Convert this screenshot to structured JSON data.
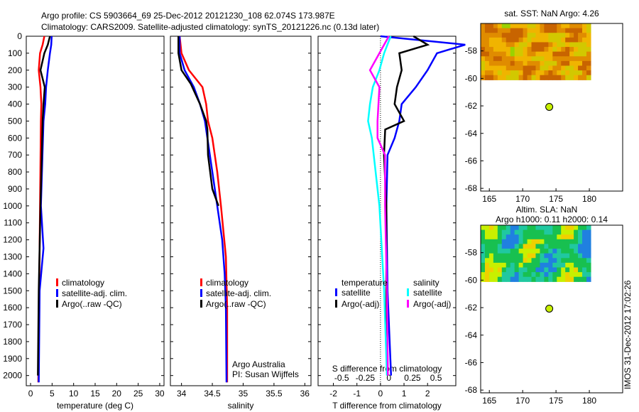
{
  "title_line1": "Argo profile: CS 5903664_69 25-Dec-2012 20121230_108 62.074S 173.987E",
  "title_line2": "Climatology: CARS2009. Satellite-adjusted climatology: synTS_20121226.nc (0.13d later)",
  "stamp": "IMOS 31-Dec-2012 17:02:26",
  "colors": {
    "clim": "#ff0000",
    "sat": "#0000ff",
    "argo": "#000000",
    "sal_sat": "#00ffff",
    "sal_argo": "#ff00ff"
  },
  "chart_data": [
    {
      "type": "line",
      "xlabel": "temperature (deg C)",
      "xlim": [
        -1,
        31
      ],
      "xticks": [
        0,
        5,
        10,
        15,
        20,
        25,
        30
      ],
      "ylim": [
        2060,
        0
      ],
      "yticks": [
        0,
        100,
        200,
        300,
        400,
        500,
        600,
        700,
        800,
        900,
        1000,
        1100,
        1200,
        1300,
        1400,
        1500,
        1600,
        1700,
        1800,
        1900,
        2000
      ],
      "legend": [
        "climatology",
        "satellite-adj. clim.",
        "Argo(..raw -QC)"
      ],
      "series": [
        {
          "name": "climatology",
          "color": "clim",
          "depth": [
            0,
            50,
            100,
            200,
            300,
            400,
            500,
            1000,
            1500,
            2040
          ],
          "values": [
            3.2,
            2.8,
            2.2,
            1.9,
            2.3,
            2.5,
            2.4,
            2.2,
            2.0,
            1.8
          ]
        },
        {
          "name": "satellite-adj. clim.",
          "color": "sat",
          "depth": [
            0,
            50,
            100,
            200,
            300,
            400,
            500,
            1000,
            1250,
            1500,
            2040
          ],
          "values": [
            4.9,
            4.8,
            4.5,
            4.0,
            3.6,
            3.4,
            3.0,
            2.4,
            3.0,
            2.1,
            1.9
          ]
        },
        {
          "name": "Argo(..raw -QC)",
          "color": "argo",
          "depth": [
            0,
            50,
            100,
            200,
            300,
            400,
            500,
            1000,
            1500,
            2000
          ],
          "values": [
            4.5,
            4.0,
            3.2,
            2.3,
            3.3,
            3.0,
            2.8,
            2.3,
            1.9,
            1.7
          ]
        }
      ]
    },
    {
      "type": "line",
      "xlabel": "salinity",
      "xlim": [
        33.82,
        36.1
      ],
      "xticks": [
        34,
        34.5,
        35,
        35.5,
        36
      ],
      "ylim": [
        2060,
        0
      ],
      "legend": [
        "climatology",
        "satellite-adj. clim.",
        "Argo(..raw -QC)"
      ],
      "annotation": [
        "Argo Australia",
        "PI: Susan Wijffels"
      ],
      "series": [
        {
          "name": "climatology",
          "color": "clim",
          "depth": [
            0,
            100,
            200,
            300,
            400,
            500,
            600,
            800,
            1000,
            1300,
            1600,
            2040
          ],
          "values": [
            33.97,
            34.0,
            34.12,
            34.34,
            34.4,
            34.43,
            34.5,
            34.58,
            34.64,
            34.72,
            34.74,
            34.74
          ]
        },
        {
          "name": "satellite-adj. clim.",
          "color": "sat",
          "depth": [
            0,
            100,
            200,
            300,
            400,
            500,
            600,
            800,
            1000,
            1200,
            1400,
            1600,
            2040
          ],
          "values": [
            33.97,
            33.97,
            34.05,
            34.2,
            34.3,
            34.38,
            34.42,
            34.5,
            34.58,
            34.66,
            34.7,
            34.72,
            34.73
          ]
        },
        {
          "name": "Argo(..raw -QC)",
          "color": "argo",
          "depth": [
            0,
            100,
            200,
            280,
            400,
            500,
            550,
            700,
            900,
            1000
          ],
          "values": [
            33.95,
            33.95,
            34.0,
            34.15,
            34.3,
            34.4,
            34.42,
            34.43,
            34.5,
            34.6
          ]
        }
      ]
    },
    {
      "type": "line",
      "xlabel": "T difference from climatology",
      "xlim": [
        -2.65,
        3.2
      ],
      "xticks": [
        -2,
        -1,
        0,
        1,
        2
      ],
      "x2label": "S difference from climatology",
      "x2lim": [
        -0.75,
        0.71
      ],
      "x2ticks": [
        -0.5,
        -0.25,
        0,
        0.25,
        0.5
      ],
      "ylim": [
        2060,
        0
      ],
      "legend_groups": [
        {
          "title": "temperature",
          "items": [
            "satellite",
            "Argo(-adj)"
          ]
        },
        {
          "title": "salinity",
          "items": [
            "satellite",
            "Argo(-adj)"
          ]
        }
      ],
      "series": [
        {
          "name": "T satellite",
          "axis": "T",
          "color": "sat",
          "depth": [
            0,
            50,
            100,
            200,
            300,
            400,
            500,
            600,
            700,
            1000,
            1500,
            2000
          ],
          "values": [
            0,
            3.6,
            2.4,
            2.0,
            1.5,
            0.9,
            0.8,
            0.6,
            0.3,
            0.25,
            0.3,
            0.45
          ]
        },
        {
          "name": "T Argo(-adj)",
          "axis": "T",
          "color": "argo",
          "depth": [
            0,
            50,
            100,
            200,
            300,
            400,
            500,
            550,
            700,
            1000,
            1500,
            2000
          ],
          "values": [
            1.4,
            2.0,
            0.8,
            0.9,
            0.7,
            0.6,
            1.0,
            0.2,
            0.15,
            0.25,
            0.25,
            0.3
          ]
        },
        {
          "name": "S satellite",
          "axis": "S",
          "color": "sal_sat",
          "depth": [
            0,
            100,
            200,
            300,
            400,
            500,
            600,
            1000,
            1500,
            2000
          ],
          "values": [
            0.02,
            -0.05,
            -0.1,
            -0.17,
            -0.2,
            -0.22,
            -0.18,
            -0.1,
            -0.05,
            -0.02
          ]
        },
        {
          "name": "S Argo(-adj)",
          "axis": "S",
          "color": "sal_argo",
          "depth": [
            0,
            100,
            200,
            300,
            500,
            600,
            700,
            1000,
            1500,
            2000
          ],
          "values": [
            0,
            -0.1,
            -0.2,
            -0.1,
            -0.12,
            -0.12,
            -0.04,
            -0.04,
            -0.02,
            -0.01
          ]
        }
      ]
    },
    {
      "type": "heatmap",
      "title": "sat. SST: NaN Argo: 4.26",
      "xticks": [
        165,
        170,
        175,
        180
      ],
      "yticks": [
        -58,
        -60,
        -62,
        -64,
        -66,
        -68
      ],
      "xlim": [
        163.7,
        185
      ],
      "ylim": [
        -68.2,
        -56
      ],
      "argo_point": [
        173.987,
        -62.074
      ]
    },
    {
      "type": "heatmap",
      "title": "Altim. SLA: NaN",
      "subtitle": "Argo h1000: 0.11 h2000: 0.14",
      "xticks": [
        165,
        170,
        175,
        180
      ],
      "yticks": [
        -58,
        -60,
        -62,
        -64,
        -66,
        -68
      ],
      "xlim": [
        163.7,
        185
      ],
      "ylim": [
        -68.2,
        -56
      ],
      "argo_point": [
        173.987,
        -62.074
      ]
    }
  ]
}
